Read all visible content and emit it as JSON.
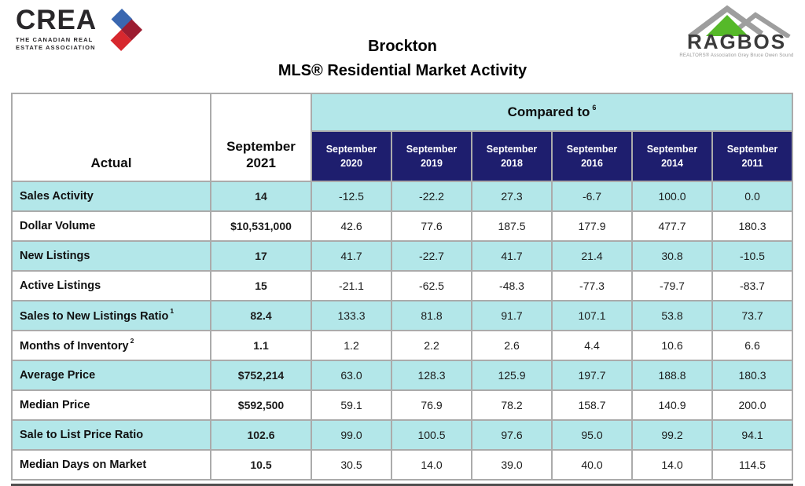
{
  "header": {
    "crea_logo": {
      "name": "CREA",
      "subtitle_line1": "THE CANADIAN REAL",
      "subtitle_line2": "ESTATE ASSOCIATION"
    },
    "title_line1": "Brockton",
    "title_line2": "MLS® Residential Market Activity",
    "ragbos_logo": {
      "name": "RAGBOS",
      "tagline": "REALTORS® Association Grey Bruce Owen Sound"
    }
  },
  "table": {
    "corner_label": "Actual",
    "actual_column": [
      "September",
      "2021"
    ],
    "compared_to_label": "Compared to",
    "compared_to_superscript": "6",
    "comparison_columns": [
      [
        "September",
        "2020"
      ],
      [
        "September",
        "2019"
      ],
      [
        "September",
        "2018"
      ],
      [
        "September",
        "2016"
      ],
      [
        "September",
        "2014"
      ],
      [
        "September",
        "2011"
      ]
    ],
    "rows": [
      {
        "label": "Sales Activity",
        "sup": "",
        "actual": "14",
        "values": [
          "-12.5",
          "-22.2",
          "27.3",
          "-6.7",
          "100.0",
          "0.0"
        ]
      },
      {
        "label": "Dollar Volume",
        "sup": "",
        "actual": "$10,531,000",
        "values": [
          "42.6",
          "77.6",
          "187.5",
          "177.9",
          "477.7",
          "180.3"
        ]
      },
      {
        "label": "New Listings",
        "sup": "",
        "actual": "17",
        "values": [
          "41.7",
          "-22.7",
          "41.7",
          "21.4",
          "30.8",
          "-10.5"
        ]
      },
      {
        "label": "Active Listings",
        "sup": "",
        "actual": "15",
        "values": [
          "-21.1",
          "-62.5",
          "-48.3",
          "-77.3",
          "-79.7",
          "-83.7"
        ]
      },
      {
        "label": "Sales to New Listings Ratio",
        "sup": "1",
        "actual": "82.4",
        "values": [
          "133.3",
          "81.8",
          "91.7",
          "107.1",
          "53.8",
          "73.7"
        ]
      },
      {
        "label": "Months of Inventory",
        "sup": "2",
        "actual": "1.1",
        "values": [
          "1.2",
          "2.2",
          "2.6",
          "4.4",
          "10.6",
          "6.6"
        ]
      },
      {
        "label": "Average Price",
        "sup": "",
        "actual": "$752,214",
        "values": [
          "63.0",
          "128.3",
          "125.9",
          "197.7",
          "188.8",
          "180.3"
        ]
      },
      {
        "label": "Median Price",
        "sup": "",
        "actual": "$592,500",
        "values": [
          "59.1",
          "76.9",
          "78.2",
          "158.7",
          "140.9",
          "200.0"
        ]
      },
      {
        "label": "Sale to List Price Ratio",
        "sup": "",
        "actual": "102.6",
        "values": [
          "99.0",
          "100.5",
          "97.6",
          "95.0",
          "99.2",
          "94.1"
        ]
      },
      {
        "label": "Median Days on Market",
        "sup": "",
        "actual": "10.5",
        "values": [
          "30.5",
          "14.0",
          "39.0",
          "40.0",
          "14.0",
          "114.5"
        ]
      }
    ]
  },
  "colors": {
    "row_highlight_cyan": "#b3e7e9",
    "header_navy": "#1e1e6e",
    "grid_gray": "#ababab",
    "crea_blue": "#3a67b0",
    "crea_dark_red": "#9c1c30",
    "crea_red": "#d7282e",
    "ragbos_green": "#56b929",
    "ragbos_roof_gray": "#9e9e9e"
  },
  "chart_data": {
    "type": "table",
    "title": "Brockton MLS® Residential Market Activity",
    "columns": [
      "Actual September 2021",
      "vs September 2020",
      "vs September 2019",
      "vs September 2018",
      "vs September 2016",
      "vs September 2014",
      "vs September 2011"
    ],
    "rows": [
      {
        "metric": "Sales Activity",
        "actual": 14,
        "pct_change": [
          -12.5,
          -22.2,
          27.3,
          -6.7,
          100.0,
          0.0
        ]
      },
      {
        "metric": "Dollar Volume",
        "actual": 10531000,
        "pct_change": [
          42.6,
          77.6,
          187.5,
          177.9,
          477.7,
          180.3
        ]
      },
      {
        "metric": "New Listings",
        "actual": 17,
        "pct_change": [
          41.7,
          -22.7,
          41.7,
          21.4,
          30.8,
          -10.5
        ]
      },
      {
        "metric": "Active Listings",
        "actual": 15,
        "pct_change": [
          -21.1,
          -62.5,
          -48.3,
          -77.3,
          -79.7,
          -83.7
        ]
      },
      {
        "metric": "Sales to New Listings Ratio",
        "actual": 82.4,
        "pct_change": [
          133.3,
          81.8,
          91.7,
          107.1,
          53.8,
          73.7
        ]
      },
      {
        "metric": "Months of Inventory",
        "actual": 1.1,
        "pct_change": [
          1.2,
          2.2,
          2.6,
          4.4,
          10.6,
          6.6
        ]
      },
      {
        "metric": "Average Price",
        "actual": 752214,
        "pct_change": [
          63.0,
          128.3,
          125.9,
          197.7,
          188.8,
          180.3
        ]
      },
      {
        "metric": "Median Price",
        "actual": 592500,
        "pct_change": [
          59.1,
          76.9,
          78.2,
          158.7,
          140.9,
          200.0
        ]
      },
      {
        "metric": "Sale to List Price Ratio",
        "actual": 102.6,
        "pct_change": [
          99.0,
          100.5,
          97.6,
          95.0,
          99.2,
          94.1
        ]
      },
      {
        "metric": "Median Days on Market",
        "actual": 10.5,
        "pct_change": [
          30.5,
          14.0,
          39.0,
          40.0,
          14.0,
          114.5
        ]
      }
    ]
  }
}
